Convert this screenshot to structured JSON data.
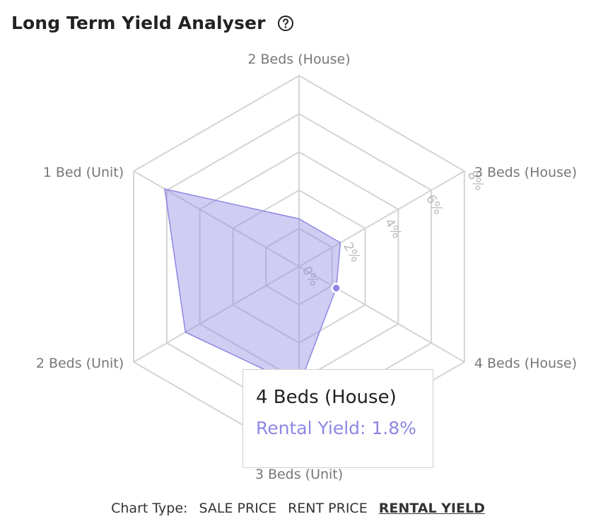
{
  "header": {
    "title": "Long Term Yield Analyser",
    "help_icon": "help-circle-icon"
  },
  "chart_data": {
    "type": "radar",
    "title": "Long Term Yield Analyser",
    "categories": [
      "2 Beds (House)",
      "3 Beds (House)",
      "4 Beds (House)",
      "3 Beds (Unit)",
      "2 Beds (Unit)",
      "1 Bed (Unit)"
    ],
    "series": [
      {
        "values": [
          2.0,
          2.0,
          1.8,
          5.0,
          5.5,
          6.5
        ],
        "color": "#8f87e3"
      }
    ],
    "radial_ticks": [
      "0%",
      "2%",
      "4%",
      "6%",
      "8%"
    ],
    "rmax": 8,
    "grid": true,
    "highlight_index": 2
  },
  "tooltip": {
    "category": "4 Beds (House)",
    "value_text": "Rental Yield: 1.8%"
  },
  "footer": {
    "label": "Chart Type:",
    "options": [
      "SALE PRICE",
      "RENT PRICE",
      "RENTAL YIELD"
    ],
    "active": "RENTAL YIELD"
  },
  "colors": {
    "series": "#8f87e3",
    "grid": "#d4d4d4",
    "label": "#777777",
    "tick": "#bbbbbb"
  }
}
